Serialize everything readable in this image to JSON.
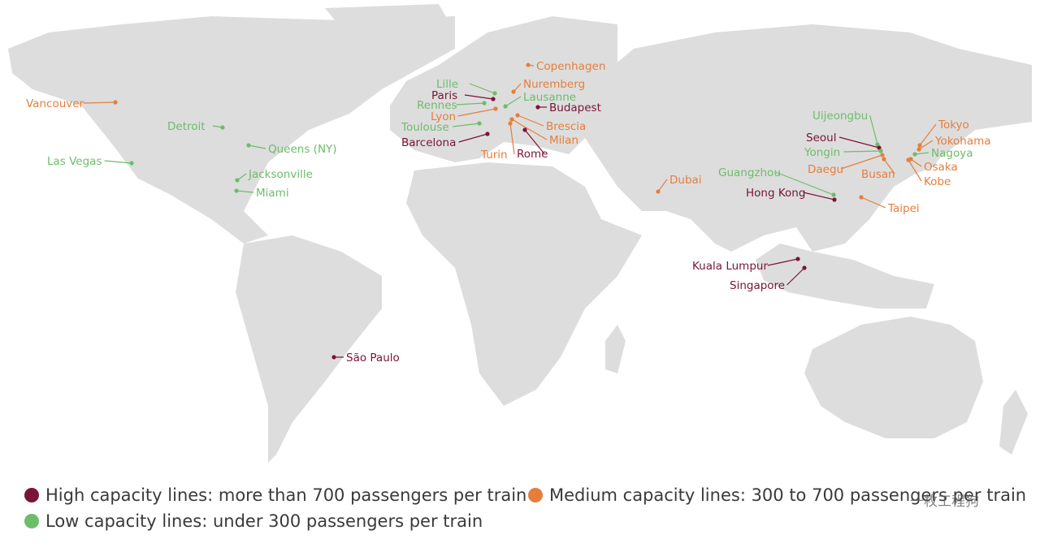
{
  "colors": {
    "high": "#7a1438",
    "medium": "#e57e3c",
    "low": "#6cbd6a",
    "land": "#dddddd",
    "background": "#ffffff"
  },
  "cities": [
    {
      "name": "Vancouver",
      "capacity": "medium"
    },
    {
      "name": "Detroit",
      "capacity": "low"
    },
    {
      "name": "Queens (NY)",
      "capacity": "low"
    },
    {
      "name": "Las Vegas",
      "capacity": "low"
    },
    {
      "name": "Jacksonville",
      "capacity": "low"
    },
    {
      "name": "Miami",
      "capacity": "low"
    },
    {
      "name": "São Paulo",
      "capacity": "high"
    },
    {
      "name": "Copenhagen",
      "capacity": "medium"
    },
    {
      "name": "Lille",
      "capacity": "low"
    },
    {
      "name": "Nuremberg",
      "capacity": "medium"
    },
    {
      "name": "Paris",
      "capacity": "high"
    },
    {
      "name": "Lausanne",
      "capacity": "low"
    },
    {
      "name": "Rennes",
      "capacity": "low"
    },
    {
      "name": "Budapest",
      "capacity": "high"
    },
    {
      "name": "Lyon",
      "capacity": "medium"
    },
    {
      "name": "Toulouse",
      "capacity": "low"
    },
    {
      "name": "Brescia",
      "capacity": "medium"
    },
    {
      "name": "Milan",
      "capacity": "medium"
    },
    {
      "name": "Barcelona",
      "capacity": "high"
    },
    {
      "name": "Turin",
      "capacity": "medium"
    },
    {
      "name": "Rome",
      "capacity": "high"
    },
    {
      "name": "Dubai",
      "capacity": "medium"
    },
    {
      "name": "Uijeongbu",
      "capacity": "low"
    },
    {
      "name": "Seoul",
      "capacity": "high"
    },
    {
      "name": "Yongin",
      "capacity": "low"
    },
    {
      "name": "Daegu",
      "capacity": "medium"
    },
    {
      "name": "Busan",
      "capacity": "medium"
    },
    {
      "name": "Tokyo",
      "capacity": "medium"
    },
    {
      "name": "Yokohama",
      "capacity": "medium"
    },
    {
      "name": "Nagoya",
      "capacity": "low"
    },
    {
      "name": "Osaka",
      "capacity": "medium"
    },
    {
      "name": "Kobe",
      "capacity": "medium"
    },
    {
      "name": "Guangzhou",
      "capacity": "low"
    },
    {
      "name": "Hong Kong",
      "capacity": "high"
    },
    {
      "name": "Taipei",
      "capacity": "medium"
    },
    {
      "name": "Kuala Lumpur",
      "capacity": "high"
    },
    {
      "name": "Singapore",
      "capacity": "high"
    }
  ],
  "legend": {
    "high": "High capacity lines: more than 700 passengers per train",
    "medium": "Medium capacity lines: 300 to 700 passengers per train",
    "low": "Low capacity lines: under 300 passengers per train"
  },
  "watermark": "一枚工程狗"
}
